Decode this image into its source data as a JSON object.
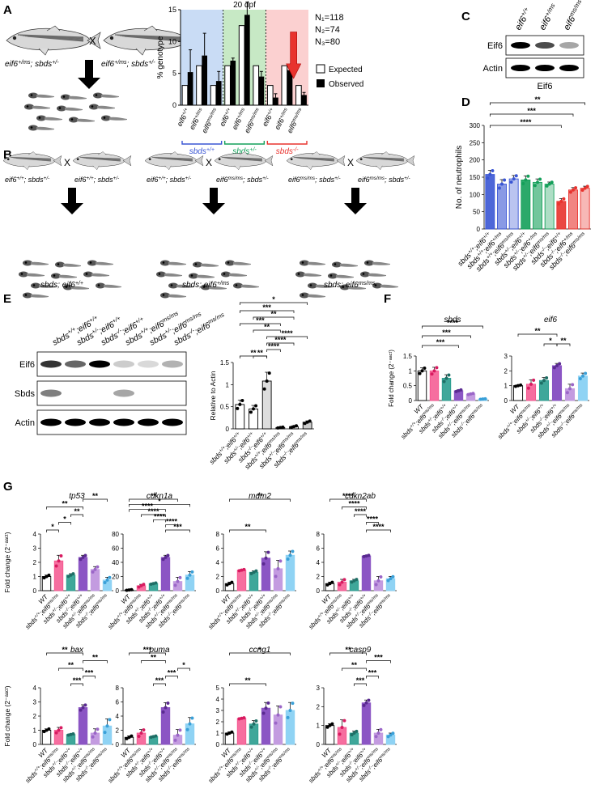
{
  "panels": {
    "A": "A",
    "B": "B",
    "C": "C",
    "D": "D",
    "E": "E",
    "F": "F",
    "G": "G"
  },
  "panel_a": {
    "cross_left": "eif6+/ms; sbds+/-",
    "cross_right": "eif6+/ms; sbds+/-",
    "cross_x": "X",
    "n_labels": [
      "N₁=118",
      "N₂=74",
      "N₃=80"
    ],
    "dpf": "20 dpf",
    "legend": [
      "Expected",
      "Observed"
    ],
    "groups": [
      "sbds+/+",
      "sbds+/-",
      "sbds-/-"
    ]
  },
  "panel_b": {
    "crosses": [
      {
        "left": "eif6+/+; sbds+/-",
        "right": "eif6+/+; sbds+/-",
        "offspring": "sbds; eif6+/+"
      },
      {
        "left": "eif6+/+; sbds+/-",
        "right": "eif6ms/ms; sbds+/-",
        "offspring": "sbds; eif6+/ms"
      },
      {
        "left": "eif6ms/ms; sbds+/-",
        "right": "eif6ms/ms; sbds+/-",
        "offspring": "sbds; eif6ms/ms"
      }
    ]
  },
  "panel_c": {
    "lanes": [
      "eif6+/+",
      "eif6+/ms",
      "eif6ms/ms"
    ],
    "bands": [
      "Eif6",
      "Actin"
    ],
    "caption": "Eif6",
    "band_intensity": [
      [
        1.0,
        0.7,
        0.35
      ],
      [
        1.0,
        1.0,
        1.0
      ]
    ]
  },
  "panel_e": {
    "lanes": [
      "sbds+/+;eif6+/+",
      "sbds+/-;eif6+/+",
      "sbds-/-;eif6+/+",
      "sbds+/+;eif6ms/ms",
      "sbds+/-;eif6ms/ms",
      "sbds-/-;eif6ms/ms"
    ],
    "bands": [
      "Eif6",
      "Sbds",
      "Actin"
    ],
    "band_intensity": [
      [
        0.8,
        0.6,
        1.0,
        0.2,
        0.15,
        0.3
      ],
      [
        0.5,
        0,
        0,
        0.35,
        0,
        0
      ],
      [
        1,
        1,
        1,
        1,
        1,
        1
      ]
    ]
  },
  "chart_data": [
    {
      "id": "A",
      "type": "bar",
      "ylabel": "% genotype",
      "ylim": [
        0,
        15
      ],
      "yticks": [
        0,
        5,
        10,
        15
      ],
      "categories": [
        "eif6+/+",
        "eif6+/ms",
        "eif6ms/ms",
        "eif6+/+",
        "eif6+/ms",
        "eif6ms/ms",
        "eif6+/+",
        "eif6+/ms",
        "eif6ms/ms"
      ],
      "series": [
        {
          "name": "Expected",
          "values": [
            3.1,
            6.2,
            3.1,
            6.2,
            12.5,
            6.2,
            3.1,
            6.2,
            3.1
          ],
          "err": [
            0,
            0,
            0,
            0,
            0,
            0,
            0,
            0,
            0
          ]
        },
        {
          "name": "Observed",
          "values": [
            5.2,
            7.8,
            3.8,
            7.0,
            14.2,
            4.5,
            1.2,
            5.5,
            1.6
          ],
          "err": [
            3.5,
            3.5,
            1.5,
            0.4,
            2.0,
            0.8,
            0.6,
            0.6,
            0.4
          ]
        }
      ]
    },
    {
      "id": "D",
      "type": "bar",
      "ylabel": "No. of neutrophils",
      "ylim": [
        0,
        300
      ],
      "yticks": [
        0,
        50,
        100,
        150,
        200,
        250,
        300
      ],
      "categories": [
        "sbds+/+;eif6+/+",
        "sbds+/+;eif6+/ms",
        "sbds+/+;eif6ms/ms",
        "sbds+/-;eif6+/+",
        "sbds+/-;eif6+/ms",
        "sbds+/-;eif6ms/ms",
        "sbds-/-;eif6+/+",
        "sbds-/-;eif6+/ms",
        "sbds-/-;eif6ms/ms"
      ],
      "values": [
        158,
        130,
        145,
        142,
        135,
        130,
        80,
        113,
        118
      ],
      "err": [
        12,
        13,
        10,
        12,
        10,
        6,
        8,
        7,
        6
      ],
      "sig": [
        {
          "a": 0,
          "b": 8,
          "text": "**"
        },
        {
          "a": 0,
          "b": 7,
          "text": "***"
        },
        {
          "a": 0,
          "b": 6,
          "text": "****"
        }
      ]
    },
    {
      "id": "E",
      "type": "bar",
      "ylabel": "Relative to Actin",
      "ylim": [
        0,
        1.5
      ],
      "yticks": [
        0.0,
        0.5,
        1.0,
        1.5
      ],
      "categories": [
        "sbds+/+;eif6+/+",
        "sbds+/-;eif6+/+",
        "sbds-/-;eif6+/+",
        "sbds+/+;eif6ms/ms",
        "sbds+/-;eif6ms/ms",
        "sbds-/-;eif6ms/ms"
      ],
      "values": [
        0.55,
        0.45,
        1.08,
        0.03,
        0.05,
        0.15
      ],
      "err": [
        0.1,
        0.08,
        0.2,
        0.01,
        0.02,
        0.03
      ],
      "sig": [
        {
          "a": 0,
          "b": 2,
          "text": "**"
        },
        {
          "a": 1,
          "b": 2,
          "text": "**"
        },
        {
          "a": 2,
          "b": 3,
          "text": "****"
        },
        {
          "a": 2,
          "b": 4,
          "text": "****"
        },
        {
          "a": 2,
          "b": 5,
          "text": "****"
        },
        {
          "a": 1,
          "b": 3,
          "text": "**"
        },
        {
          "a": 0,
          "b": 3,
          "text": "***"
        },
        {
          "a": 1,
          "b": 4,
          "text": "**"
        },
        {
          "a": 0,
          "b": 4,
          "text": "***"
        },
        {
          "a": 0,
          "b": 5,
          "text": "*"
        }
      ]
    },
    {
      "id": "F1",
      "type": "bar",
      "title": "sbds",
      "ylabel": "Fold change (2⁻ᵃᵃᶜᵗ)",
      "ylim": [
        0,
        1.5
      ],
      "yticks": [
        0.0,
        0.5,
        1.0,
        1.5
      ],
      "categories": [
        "WT",
        "sbds+/+;eif6ms/ms",
        "sbds+/-;eif6+/+",
        "sbds-/-;eif6+/+",
        "sbds+/-;eif6ms/ms",
        "sbds-/-;eif6ms/ms"
      ],
      "values": [
        1.0,
        1.0,
        0.75,
        0.33,
        0.22,
        0.05
      ],
      "err": [
        0.1,
        0.12,
        0.12,
        0.03,
        0.02,
        0.01
      ],
      "sig": [
        {
          "a": 0,
          "b": 3,
          "text": "***"
        },
        {
          "a": 0,
          "b": 4,
          "text": "***"
        },
        {
          "a": 0,
          "b": 5,
          "text": "****"
        }
      ]
    },
    {
      "id": "F2",
      "type": "bar",
      "title": "eif6",
      "ylabel": "Fold change (2⁻ᵃᵃᶜᵗ)",
      "ylim": [
        0,
        3
      ],
      "yticks": [
        0,
        1,
        2,
        3
      ],
      "categories": [
        "WT",
        "sbds+/+;eif6ms/ms",
        "sbds+/-;eif6+/+",
        "sbds-/-;eif6+/+",
        "sbds+/-;eif6ms/ms",
        "sbds-/-;eif6ms/ms"
      ],
      "values": [
        1.0,
        1.1,
        1.35,
        2.35,
        0.8,
        1.65
      ],
      "err": [
        0.05,
        0.3,
        0.2,
        0.15,
        0.3,
        0.2
      ],
      "sig": [
        {
          "a": 2,
          "b": 3,
          "text": "*"
        },
        {
          "a": 3,
          "b": 4,
          "text": "**"
        },
        {
          "a": 0,
          "b": 3,
          "text": "**"
        }
      ]
    },
    {
      "id": "tp53",
      "type": "bar",
      "title": "tp53",
      "ylim": [
        0,
        4
      ],
      "yticks": [
        0,
        1,
        2,
        3,
        4
      ],
      "categories": [
        "WT",
        "sbds+/+;eif6ms/ms",
        "sbds+/-;eif6+/+",
        "sbds-/-;eif6+/+",
        "sbds+/-;eif6ms/ms",
        "sbds-/-;eif6ms/ms"
      ],
      "values": [
        1.0,
        2.1,
        1.1,
        2.35,
        1.5,
        0.75
      ],
      "err": [
        0.1,
        0.4,
        0.1,
        0.15,
        0.2,
        0.2
      ],
      "sig": [
        {
          "a": 0,
          "b": 1,
          "text": "*"
        },
        {
          "a": 1,
          "b": 2,
          "text": "*"
        },
        {
          "a": 2,
          "b": 3,
          "text": "**"
        },
        {
          "a": 0,
          "b": 3,
          "text": "**"
        },
        {
          "a": 3,
          "b": 5,
          "text": "**"
        }
      ]
    },
    {
      "id": "cdkn1a",
      "type": "bar",
      "title": "cdkn1a",
      "ylim": [
        0,
        80
      ],
      "yticks": [
        0,
        20,
        40,
        60,
        80
      ],
      "categories": [
        "WT",
        "sbds+/+;eif6ms/ms",
        "sbds+/-;eif6+/+",
        "sbds-/-;eif6+/+",
        "sbds+/-;eif6ms/ms",
        "sbds-/-;eif6ms/ms"
      ],
      "values": [
        1,
        7,
        10,
        47,
        13,
        22
      ],
      "err": [
        0.5,
        2,
        1,
        3,
        6,
        5
      ],
      "sig": [
        {
          "a": 3,
          "b": 5,
          "text": "***"
        },
        {
          "a": 3,
          "b": 4,
          "text": "****"
        },
        {
          "a": 2,
          "b": 3,
          "text": "****"
        },
        {
          "a": 1,
          "b": 3,
          "text": "****"
        },
        {
          "a": 0,
          "b": 3,
          "text": "****"
        },
        {
          "a": 0,
          "b": 5,
          "text": "*"
        },
        {
          "a": 0,
          "b": 4,
          "text": "**"
        }
      ]
    },
    {
      "id": "mdm2",
      "type": "bar",
      "title": "mdm2",
      "ylim": [
        0,
        8
      ],
      "yticks": [
        0,
        2,
        4,
        6,
        8
      ],
      "categories": [
        "WT",
        "sbds+/+;eif6ms/ms",
        "sbds+/-;eif6+/+",
        "sbds-/-;eif6+/+",
        "sbds+/-;eif6ms/ms",
        "sbds-/-;eif6ms/ms"
      ],
      "values": [
        1.0,
        2.9,
        2.6,
        4.6,
        3.1,
        5.0
      ],
      "err": [
        0.2,
        0.1,
        0.2,
        0.9,
        1.2,
        0.6
      ],
      "sig": [
        {
          "a": 0,
          "b": 3,
          "text": "**"
        },
        {
          "a": 0,
          "b": 5,
          "text": "**"
        }
      ]
    },
    {
      "id": "cdkn2ab",
      "type": "bar",
      "title": "cdkn2ab",
      "ylim": [
        0,
        8
      ],
      "yticks": [
        0,
        2,
        4,
        6,
        8
      ],
      "categories": [
        "WT",
        "sbds+/+;eif6ms/ms",
        "sbds+/-;eif6+/+",
        "sbds-/-;eif6+/+",
        "sbds+/-;eif6ms/ms",
        "sbds-/-;eif6ms/ms"
      ],
      "values": [
        1.0,
        1.2,
        1.4,
        4.9,
        1.4,
        1.7
      ],
      "err": [
        0.2,
        0.4,
        0.2,
        0.1,
        0.6,
        0.3
      ],
      "sig": [
        {
          "a": 3,
          "b": 5,
          "text": "****"
        },
        {
          "a": 3,
          "b": 4,
          "text": "****"
        },
        {
          "a": 2,
          "b": 3,
          "text": "****"
        },
        {
          "a": 1,
          "b": 3,
          "text": "****"
        },
        {
          "a": 0,
          "b": 3,
          "text": "****"
        }
      ]
    },
    {
      "id": "bax",
      "type": "bar",
      "title": "bax",
      "ylim": [
        0,
        4
      ],
      "yticks": [
        0,
        1,
        2,
        3,
        4
      ],
      "categories": [
        "WT",
        "sbds+/+;eif6ms/ms",
        "sbds+/-;eif6+/+",
        "sbds-/-;eif6+/+",
        "sbds+/-;eif6ms/ms",
        "sbds-/-;eif6ms/ms"
      ],
      "values": [
        1.0,
        1.0,
        0.7,
        2.6,
        0.8,
        1.3
      ],
      "err": [
        0.1,
        0.2,
        0.05,
        0.2,
        0.3,
        0.5
      ],
      "sig": [
        {
          "a": 2,
          "b": 3,
          "text": "***"
        },
        {
          "a": 3,
          "b": 4,
          "text": "***"
        },
        {
          "a": 1,
          "b": 3,
          "text": "**"
        },
        {
          "a": 3,
          "b": 5,
          "text": "**"
        },
        {
          "a": 0,
          "b": 3,
          "text": "**"
        }
      ]
    },
    {
      "id": "puma",
      "type": "bar",
      "title": "puma",
      "ylim": [
        0,
        8
      ],
      "yticks": [
        0,
        2,
        4,
        6,
        8
      ],
      "categories": [
        "WT",
        "sbds+/+;eif6ms/ms",
        "sbds+/-;eif6+/+",
        "sbds-/-;eif6+/+",
        "sbds+/-;eif6ms/ms",
        "sbds-/-;eif6ms/ms"
      ],
      "values": [
        1.0,
        1.6,
        1.1,
        5.2,
        1.3,
        2.9
      ],
      "err": [
        0.2,
        0.5,
        0.1,
        0.7,
        0.8,
        0.9
      ],
      "sig": [
        {
          "a": 2,
          "b": 3,
          "text": "***"
        },
        {
          "a": 3,
          "b": 4,
          "text": "***"
        },
        {
          "a": 4,
          "b": 5,
          "text": "*"
        },
        {
          "a": 1,
          "b": 3,
          "text": "**"
        },
        {
          "a": 0,
          "b": 3,
          "text": "***"
        }
      ]
    },
    {
      "id": "ccng1",
      "type": "bar",
      "title": "ccng1",
      "ylim": [
        0,
        5
      ],
      "yticks": [
        0,
        1,
        2,
        3,
        4,
        5
      ],
      "categories": [
        "WT",
        "sbds+/+;eif6ms/ms",
        "sbds+/-;eif6+/+",
        "sbds-/-;eif6+/+",
        "sbds+/-;eif6ms/ms",
        "sbds-/-;eif6ms/ms"
      ],
      "values": [
        1.0,
        2.3,
        1.8,
        3.2,
        2.6,
        3.0
      ],
      "err": [
        0.1,
        0.05,
        0.3,
        0.5,
        0.8,
        0.7
      ],
      "sig": [
        {
          "a": 0,
          "b": 3,
          "text": "**"
        },
        {
          "a": 0,
          "b": 5,
          "text": "*"
        }
      ]
    },
    {
      "id": "casp9",
      "type": "bar",
      "title": "casp9",
      "ylim": [
        0,
        3
      ],
      "yticks": [
        0,
        1,
        2,
        3
      ],
      "categories": [
        "WT",
        "sbds+/+;eif6ms/ms",
        "sbds+/-;eif6+/+",
        "sbds-/-;eif6+/+",
        "sbds+/-;eif6ms/ms",
        "sbds-/-;eif6ms/ms"
      ],
      "values": [
        1.0,
        0.9,
        0.6,
        2.2,
        0.6,
        0.5
      ],
      "err": [
        0.1,
        0.4,
        0.1,
        0.15,
        0.2,
        0.1
      ],
      "sig": [
        {
          "a": 2,
          "b": 3,
          "text": "***"
        },
        {
          "a": 3,
          "b": 4,
          "text": "***"
        },
        {
          "a": 1,
          "b": 3,
          "text": "**"
        },
        {
          "a": 3,
          "b": 5,
          "text": "***"
        },
        {
          "a": 0,
          "b": 3,
          "text": "**"
        }
      ]
    }
  ],
  "colors": {
    "blue": "#3a56d4",
    "green": "#14a05a",
    "red": "#e8332e",
    "wt": "#ffffff",
    "pink": "#f5558e",
    "teal": "#2a9d8f",
    "purple": "#8b55c4",
    "lavender": "#c39be0",
    "lightblue": "#8fd3f4",
    "bg_blue": "#c9dcf5",
    "bg_green": "#c7e9c5",
    "bg_red": "#fbd0d0"
  }
}
